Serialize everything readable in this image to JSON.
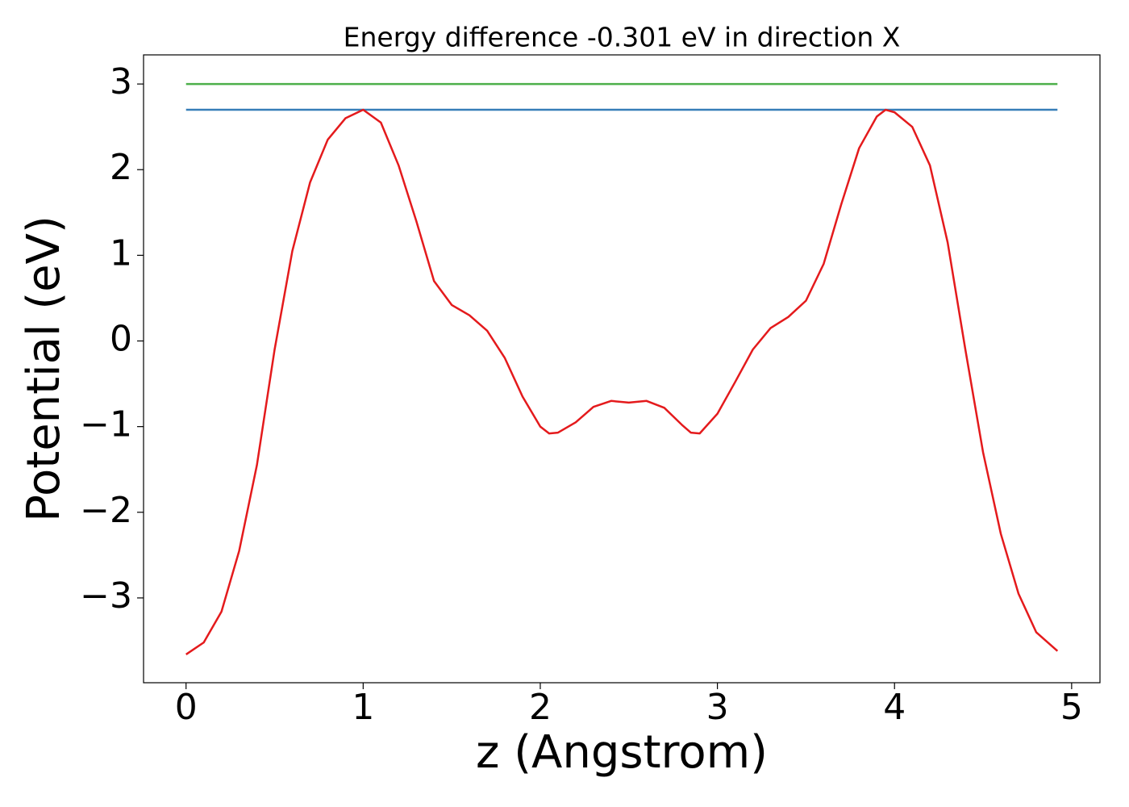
{
  "chart_data": {
    "type": "line",
    "title": "Energy difference -0.301 eV in direction X",
    "x_label": "z (Angstrom)",
    "y_label": "Potential (eV)",
    "xlim": [
      -0.24,
      5.16
    ],
    "ylim": [
      -3.99,
      3.34
    ],
    "xticks": [
      0,
      1,
      2,
      3,
      4,
      5
    ],
    "yticks": [
      {
        "value": -3,
        "label": "−3"
      },
      {
        "value": -2,
        "label": "−2"
      },
      {
        "value": -1,
        "label": "−1"
      },
      0,
      1,
      2,
      3
    ],
    "series": [
      {
        "color": "#4daf4a",
        "x": [
          0,
          4.92
        ],
        "values": [
          3.0,
          3.0
        ]
      },
      {
        "color": "#377eb8",
        "x": [
          0,
          4.92
        ],
        "values": [
          2.699,
          2.699
        ]
      },
      {
        "color": "#e41a1c",
        "x": [
          0,
          0.1,
          0.2,
          0.3,
          0.4,
          0.5,
          0.6,
          0.7,
          0.8,
          0.9,
          1.0,
          1.1,
          1.2,
          1.3,
          1.4,
          1.5,
          1.6,
          1.7,
          1.8,
          1.9,
          2.0,
          2.05,
          2.1,
          2.2,
          2.3,
          2.4,
          2.5,
          2.6,
          2.7,
          2.8,
          2.85,
          2.9,
          3.0,
          3.1,
          3.2,
          3.3,
          3.4,
          3.5,
          3.6,
          3.7,
          3.8,
          3.9,
          3.95,
          4.0,
          4.1,
          4.2,
          4.3,
          4.4,
          4.5,
          4.6,
          4.7,
          4.8,
          4.92
        ],
        "values": [
          -3.66,
          -3.52,
          -3.16,
          -2.45,
          -1.45,
          -0.1,
          1.05,
          1.85,
          2.35,
          2.6,
          2.699,
          2.55,
          2.05,
          1.4,
          0.7,
          0.42,
          0.3,
          0.12,
          -0.2,
          -0.65,
          -1.0,
          -1.08,
          -1.07,
          -0.95,
          -0.77,
          -0.7,
          -0.72,
          -0.7,
          -0.78,
          -0.98,
          -1.07,
          -1.08,
          -0.85,
          -0.48,
          -0.1,
          0.15,
          0.28,
          0.47,
          0.9,
          1.6,
          2.25,
          2.62,
          2.699,
          2.67,
          2.5,
          2.05,
          1.15,
          -0.1,
          -1.3,
          -2.25,
          -2.95,
          -3.4,
          -3.62
        ]
      }
    ]
  }
}
